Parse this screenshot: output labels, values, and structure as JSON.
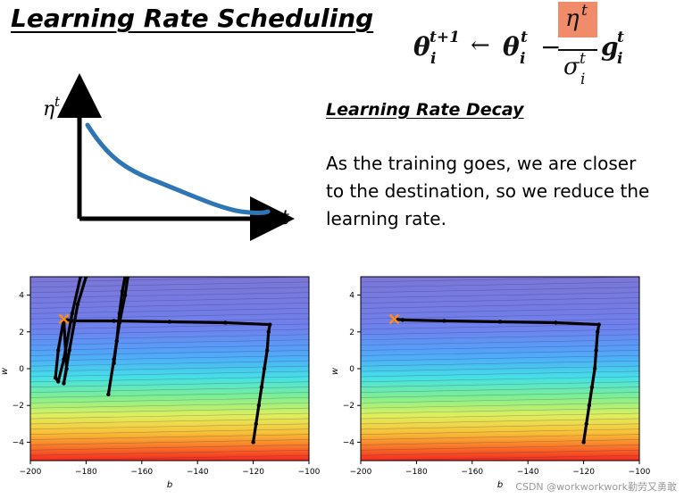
{
  "header": {
    "title": "Learning Rate Scheduling"
  },
  "formula": {
    "lhs": "θ",
    "lhs_sup": "t+1",
    "lhs_sub": "i",
    "arrow": "←",
    "rhs": "θ",
    "rhs_sup": "t",
    "rhs_sub": "i",
    "minus": "−",
    "num": "η",
    "num_sup": "t",
    "den": "σ",
    "den_sup": "t",
    "den_sub": "i",
    "g": "g",
    "g_sup": "t",
    "g_sub": "i",
    "highlight_color": "#f08c6a"
  },
  "schedule_graph": {
    "y_label": "η",
    "y_sup": "t",
    "x_label": "t",
    "curve_color": "#2e75b6"
  },
  "section": {
    "subtitle": "Learning Rate Decay",
    "description": "As the training goes, we are closer to the destination, so we reduce the learning rate."
  },
  "chart_data": [
    {
      "type": "line",
      "xlabel": "b",
      "ylabel": "w",
      "xlim": [
        -200,
        -100
      ],
      "ylim": [
        -5,
        5
      ],
      "xticks": [
        "−200",
        "−180",
        "−160",
        "−140",
        "−120",
        "−100"
      ],
      "yticks": [
        "4",
        "2",
        "0",
        "−2",
        "−4"
      ],
      "series": [
        {
          "values": [
            [
              -120,
              -4
            ],
            [
              -119,
              -3
            ],
            [
              -118,
              -2
            ],
            [
              -117,
              -1
            ],
            [
              -116,
              0
            ],
            [
              -115,
              1
            ],
            [
              -114.5,
              2
            ],
            [
              -114,
              2.4
            ],
            [
              -130,
              2.5
            ],
            [
              -150,
              2.55
            ],
            [
              -170,
              2.6
            ],
            [
              -185,
              2.6
            ],
            [
              -188,
              2.7
            ]
          ]
        },
        {
          "values": [
            [
              -188,
              2.7
            ],
            [
              -190,
              1
            ],
            [
              -191,
              -0.5
            ],
            [
              -190,
              -0.7
            ],
            [
              -188,
              0.5
            ],
            [
              -185,
              3
            ],
            [
              -182,
              5
            ]
          ]
        },
        {
          "values": [
            [
              -188,
              2.7
            ],
            [
              -187,
              0
            ],
            [
              -188,
              -0.8
            ],
            [
              -186,
              1
            ],
            [
              -183,
              3.5
            ],
            [
              -180,
              5
            ]
          ]
        },
        {
          "values": [
            [
              -172,
              -1.4
            ],
            [
              -170,
              0.5
            ],
            [
              -168,
              2.5
            ],
            [
              -166,
              4
            ],
            [
              -165,
              5
            ]
          ]
        },
        {
          "values": [
            [
              -170,
              0.3
            ],
            [
              -169,
              1.5
            ],
            [
              -168,
              3
            ],
            [
              -167,
              4.2
            ],
            [
              -166,
              5
            ]
          ]
        }
      ],
      "start_marker": [
        -188,
        2.7
      ],
      "marker_color": "#ff8c1a"
    },
    {
      "type": "line",
      "xlabel": "b",
      "ylabel": "w",
      "xlim": [
        -200,
        -100
      ],
      "ylim": [
        -5,
        5
      ],
      "xticks": [
        "−200",
        "−180",
        "−160",
        "−140",
        "−120",
        "−100"
      ],
      "yticks": [
        "4",
        "2",
        "0",
        "−2",
        "−4"
      ],
      "series": [
        {
          "values": [
            [
              -120,
              -4
            ],
            [
              -119,
              -3
            ],
            [
              -118,
              -2
            ],
            [
              -117,
              -1
            ],
            [
              -116,
              0
            ],
            [
              -115.5,
              1
            ],
            [
              -115,
              2
            ],
            [
              -114.5,
              2.4
            ],
            [
              -130,
              2.5
            ],
            [
              -150,
              2.55
            ],
            [
              -170,
              2.6
            ],
            [
              -185,
              2.65
            ],
            [
              -188,
              2.7
            ]
          ]
        }
      ],
      "start_marker": [
        -188,
        2.7
      ],
      "marker_color": "#ff8c1a"
    }
  ],
  "watermark": "CSDN @workworkwork勤劳又勇敢"
}
